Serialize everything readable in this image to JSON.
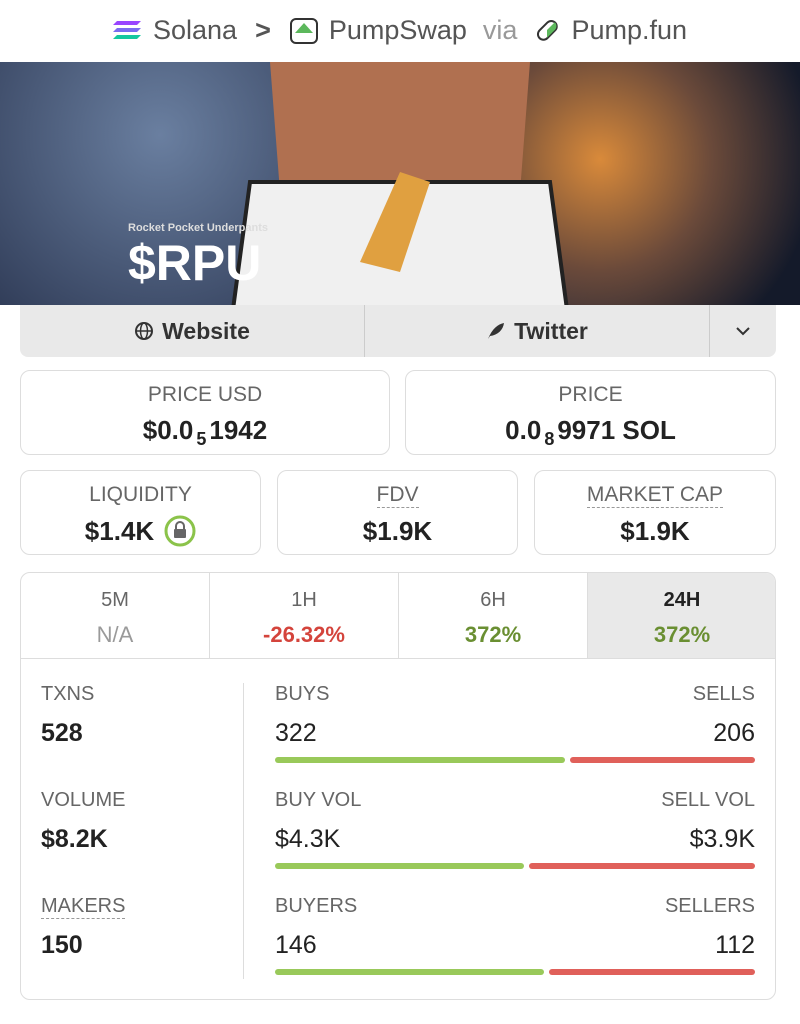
{
  "header": {
    "chain": "Solana",
    "separator": ">",
    "dex": "PumpSwap",
    "via": "via",
    "launchpad": "Pump.fun"
  },
  "banner": {
    "subtitle": "Rocket Pocket Underpants",
    "ticker": "$RPU"
  },
  "links": {
    "website": "Website",
    "twitter": "Twitter"
  },
  "prices": {
    "usd": {
      "label": "PRICE USD",
      "prefix": "$0.0",
      "zeros": "5",
      "digits": "1942"
    },
    "native": {
      "label": "PRICE",
      "prefix": "0.0",
      "zeros": "8",
      "digits": "9971 SOL"
    }
  },
  "stats": [
    {
      "label": "LIQUIDITY",
      "value": "$1.4K"
    },
    {
      "label": "FDV",
      "value": "$1.9K"
    },
    {
      "label": "MARKET CAP",
      "value": "$1.9K"
    }
  ],
  "timeframes": [
    {
      "label": "5M",
      "change": "N/A",
      "color": "#9a9a9a"
    },
    {
      "label": "1H",
      "change": "-26.32%",
      "color": "#d4443c"
    },
    {
      "label": "6H",
      "change": "372%",
      "color": "#6a8f32"
    },
    {
      "label": "24H",
      "change": "372%",
      "color": "#6a8f32"
    }
  ],
  "selected_timeframe": 3,
  "activity": [
    {
      "total_label": "TXNS",
      "total": 528,
      "left_label": "BUYS",
      "left": {
        "value": 322,
        "label": "322"
      },
      "right_label": "SELLS",
      "right": {
        "value": 206,
        "label": "206"
      }
    },
    {
      "total_label": "VOLUME",
      "total": "$8.2K",
      "left_label": "BUY VOL",
      "left": {
        "value": 4300,
        "label": "$4.3K"
      },
      "right_label": "SELL VOL",
      "right": {
        "value": 3900,
        "label": "$3.9K"
      }
    },
    {
      "total_label": "MAKERS",
      "total": 150,
      "left_label": "BUYERS",
      "left": {
        "value": 146,
        "label": "146"
      },
      "right_label": "SELLERS",
      "right": {
        "value": 112,
        "label": "112"
      }
    }
  ],
  "bar_colors": {
    "left": "#99c95a",
    "right": "#e0605a"
  }
}
